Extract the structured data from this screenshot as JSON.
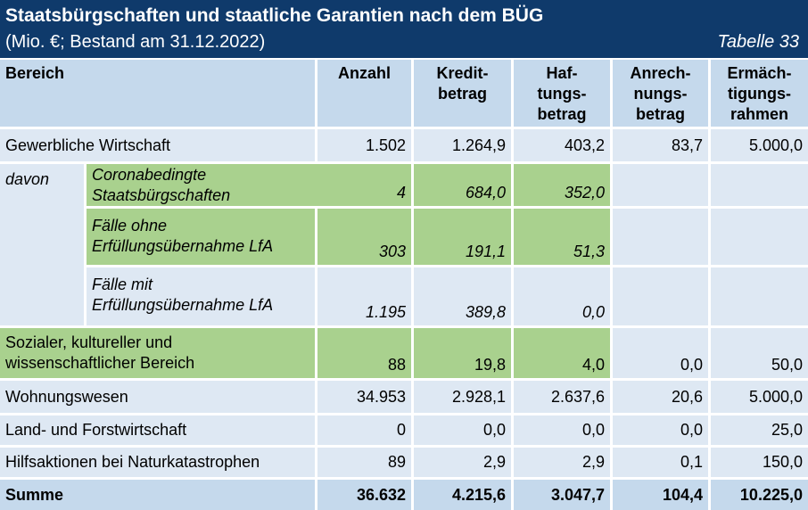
{
  "title": "Staatsbürgschaften und staatliche Garantien nach dem BÜG",
  "subtitle": "(Mio. €; Bestand am 31.12.2022)",
  "table_no": "Tabelle 33",
  "columns": [
    "Bereich",
    "Anzahl",
    "Kredit-\nbetrag",
    "Haf-\ntungs-\nbetrag",
    "Anrech-\nnungs-\nbetrag",
    "Ermäch-\ntigungs-\nrahmen"
  ],
  "rows": {
    "gewerbe": {
      "label": "Gewerbliche Wirtschaft",
      "values": [
        "1.502",
        "1.264,9",
        "403,2",
        "83,7",
        "5.000,0"
      ]
    },
    "davon": "davon",
    "corona": {
      "label": "Coronabedingte\nStaatsbürgschaften",
      "values": [
        "4",
        "684,0",
        "352,0"
      ]
    },
    "ohne": {
      "label": "Fälle ohne\nErfüllungsübernahme LfA",
      "values": [
        "303",
        "191,1",
        "51,3"
      ]
    },
    "mit": {
      "label": "Fälle mit\nErfüllungsübernahme LfA",
      "values": [
        "1.195",
        "389,8",
        "0,0"
      ]
    },
    "sozial": {
      "label": "Sozialer, kultureller und\nwissenschaftlicher Bereich",
      "values": [
        "88",
        "19,8",
        "4,0",
        "0,0",
        "50,0"
      ]
    },
    "wohnung": {
      "label": "Wohnungswesen",
      "values": [
        "34.953",
        "2.928,1",
        "2.637,6",
        "20,6",
        "5.000,0"
      ]
    },
    "land": {
      "label": "Land- und Forstwirtschaft",
      "values": [
        "0",
        "0,0",
        "0,0",
        "0,0",
        "25,0"
      ]
    },
    "hilfe": {
      "label": "Hilfsaktionen bei Naturkatastrophen",
      "values": [
        "89",
        "2,9",
        "2,9",
        "0,1",
        "150,0"
      ]
    },
    "summe": {
      "label": "Summe",
      "values": [
        "36.632",
        "4.215,6",
        "3.047,7",
        "104,4",
        "10.225,0"
      ]
    }
  }
}
